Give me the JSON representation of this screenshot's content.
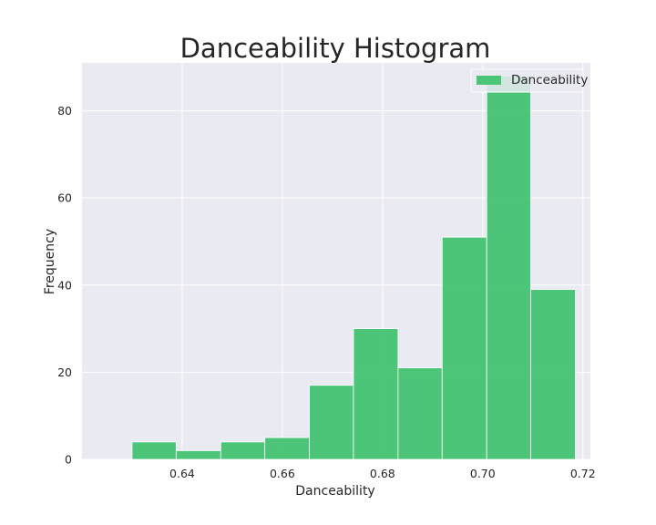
{
  "chart_data": {
    "type": "bar",
    "title": "Danceability Histogram",
    "xlabel": "Danceability",
    "ylabel": "Frequency",
    "xlim": [
      0.62,
      0.7215
    ],
    "ylim": [
      0,
      91
    ],
    "xticks": [
      0.64,
      0.66,
      0.68,
      0.7,
      0.72
    ],
    "xtick_labels": [
      "0.64",
      "0.66",
      "0.68",
      "0.70",
      "0.72"
    ],
    "yticks": [
      0,
      20,
      40,
      60,
      80
    ],
    "ytick_labels": [
      "0",
      "20",
      "40",
      "60",
      "80"
    ],
    "grid": true,
    "legend_position": "top-right",
    "series": [
      {
        "name": "Danceability",
        "color": "#3cc16a",
        "bins": [
          [
            0.63,
            0.6388
          ],
          [
            0.6388,
            0.6477
          ],
          [
            0.6477,
            0.6565
          ],
          [
            0.6565,
            0.6654
          ],
          [
            0.6654,
            0.6742
          ],
          [
            0.6742,
            0.6831
          ],
          [
            0.6831,
            0.6919
          ],
          [
            0.6919,
            0.7008
          ],
          [
            0.7008,
            0.7096
          ],
          [
            0.7096,
            0.7185
          ]
        ],
        "values": [
          4,
          2,
          4,
          5,
          17,
          30,
          21,
          51,
          88,
          39
        ]
      }
    ]
  }
}
